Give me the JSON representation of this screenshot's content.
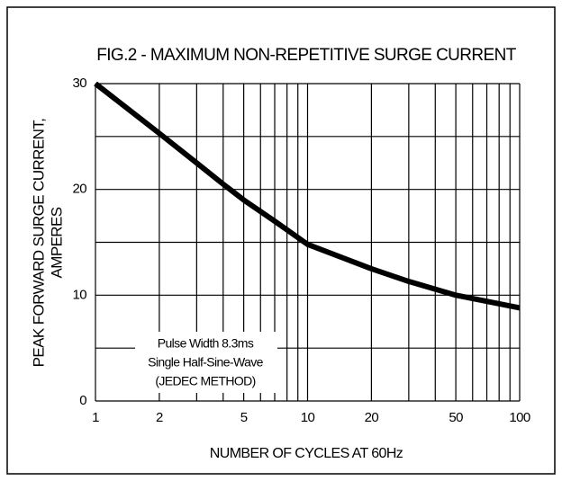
{
  "chart_data": {
    "type": "line",
    "title": "FIG.2 - MAXIMUM NON-REPETITIVE SURGE CURRENT",
    "ylabel": [
      "PEAK FORWARD SURGE CURRENT,",
      "AMPERES"
    ],
    "xlabel": "NUMBER OF CYCLES AT 60Hz",
    "annotation": [
      "Pulse Width 8.3ms",
      "Single Half-Sine-Wave",
      "(JEDEC METHOD)"
    ],
    "x_log": true,
    "grid": true,
    "xlim": [
      1,
      100
    ],
    "xticks": [
      1,
      2,
      5,
      10,
      20,
      50,
      100
    ],
    "xminor": [
      3,
      4,
      6,
      7,
      8,
      9,
      30,
      40,
      60,
      70,
      80,
      90
    ],
    "ylim": [
      0,
      30
    ],
    "yticks": [
      0,
      10,
      20,
      30
    ],
    "yminor": [
      5,
      15,
      25
    ],
    "series": [
      {
        "name": "Surge current",
        "color": "#000000",
        "x": [
          1,
          2,
          3,
          4,
          5,
          7,
          10,
          20,
          30,
          50,
          100
        ],
        "values": [
          30,
          25.3,
          22.5,
          20.5,
          19,
          17,
          14.8,
          12.5,
          11.3,
          10,
          8.8
        ]
      }
    ]
  }
}
